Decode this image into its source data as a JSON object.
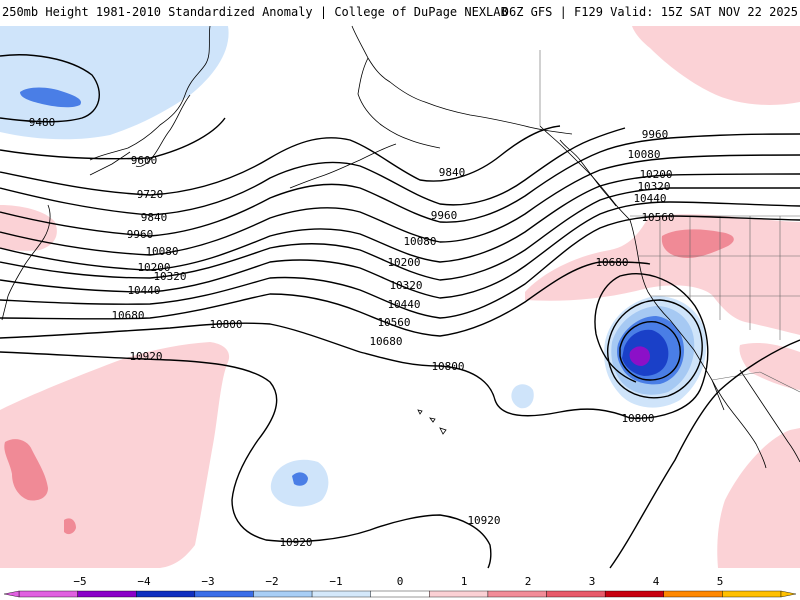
{
  "title": {
    "left": "250mb Height 1981-2010 Standardized Anomaly | College of DuPage NEXLAB",
    "right": "06Z GFS | F129 Valid: 15Z SAT NOV 22 2025"
  },
  "contour_labels": {
    "l9480": "9480",
    "l9600": "9600",
    "l9720": "9720",
    "l9840a": "9840",
    "l9960a": "9960",
    "l10080a": "10080",
    "l10200a": "10200",
    "l10320a": "10320",
    "l10440a": "10440",
    "l10680a": "10680",
    "l10800a": "10800",
    "l10920a": "10920",
    "l9840b": "9840",
    "l9960b": "9960",
    "l10080b": "10080",
    "l10200b": "10200",
    "l10320b": "10320",
    "l10440b": "10440",
    "l10560b": "10560",
    "l10680b": "10680",
    "l10800b": "10800",
    "l9960c": "9960",
    "l10080c": "10080",
    "l10200c": "10200",
    "l10320c": "10320",
    "l10440c": "10440",
    "l10560c": "10560",
    "l10680c": "10680",
    "l10800c": "10800",
    "l10920b": "10920",
    "l10920c": "10920"
  },
  "colorbar": {
    "ticks": [
      "−5",
      "−4",
      "−3",
      "−2",
      "−1",
      "0",
      "1",
      "2",
      "3",
      "4",
      "5"
    ],
    "colors": [
      "#e060e0",
      "#8a00c8",
      "#1030c0",
      "#3a6ee8",
      "#a8cef5",
      "#d4e8fa",
      "#ffffff",
      "#fbd0d4",
      "#f28c98",
      "#e85a6a",
      "#c80010",
      "#ff8800",
      "#ffc000"
    ]
  },
  "colors": {
    "neg1": "#cfe4fa",
    "neg2": "#a6c9f3",
    "neg3": "#4a7ee6",
    "neg4": "#1a40c8",
    "neg5": "#8c10c8",
    "pos1": "#fbd2d6",
    "pos2": "#f08a96",
    "contour": "#000000",
    "coast": "#000000"
  }
}
